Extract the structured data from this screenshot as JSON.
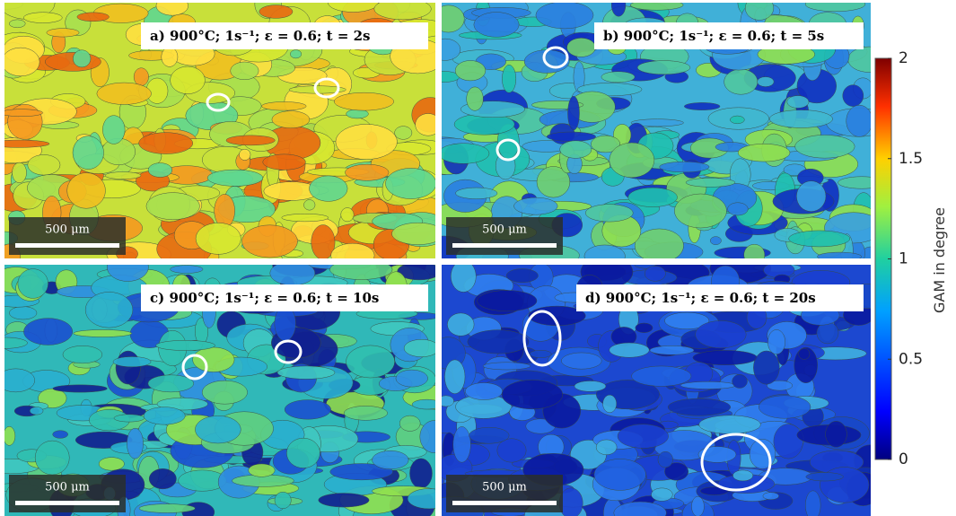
{
  "panels": [
    {
      "label": "a)  900°C; 1s⁻¹;  ε = 0.6; t = 2s",
      "scale_bar": "500 μm"
    },
    {
      "label": "b)  900°C; 1s⁻¹;  ε = 0.6; t = 5s",
      "scale_bar": "500 μm"
    },
    {
      "label": "c)  900°C; 1s⁻¹;  ε = 0.6; t = 10s",
      "scale_bar": "500 μm"
    },
    {
      "label": "d)  900°C; 1s⁻¹;  ε = 0.6; t = 20s",
      "scale_bar": "500 μm"
    }
  ],
  "colorbar": {
    "title": "GAM in degree",
    "lim": [
      0,
      2
    ],
    "ticks": [
      0,
      0.5,
      1,
      1.5,
      2
    ]
  }
}
